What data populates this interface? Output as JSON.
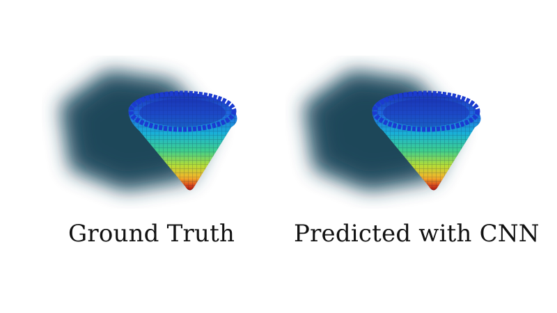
{
  "panels": [
    {
      "caption": "Ground Truth"
    },
    {
      "caption": "Predicted with CNN"
    }
  ],
  "colors": {
    "background": "#ffffff",
    "volume_fog": "#1f4a5f",
    "colormap": [
      "#1a2fb0",
      "#1f66e0",
      "#19b0d8",
      "#3fcf8c",
      "#b7dc35",
      "#f3b42a",
      "#d9461c",
      "#a5160f"
    ]
  }
}
